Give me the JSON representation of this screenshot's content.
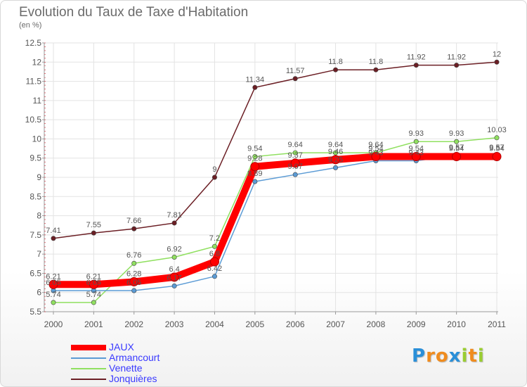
{
  "chart_data": {
    "type": "line",
    "title": "Evolution du Taux de Taxe d'Habitation",
    "subtitle": "(en %)",
    "categories": [
      "2000",
      "2001",
      "2002",
      "2003",
      "2004",
      "2005",
      "2006",
      "2007",
      "2008",
      "2009",
      "2010",
      "2011"
    ],
    "ylim": [
      5.5,
      12.5
    ],
    "yticks": [
      "5.5",
      "6",
      "6.5",
      "7",
      "7.5",
      "8",
      "8.5",
      "9",
      "9.5",
      "10",
      "10.5",
      "11",
      "11.5",
      "12",
      "12.5"
    ],
    "grid": true,
    "legend_position": "bottom-left",
    "series": [
      {
        "name": "Jonquières",
        "color": "#6b1e24",
        "values": [
          7.41,
          7.55,
          7.66,
          7.81,
          9,
          11.34,
          11.57,
          11.8,
          11.8,
          11.92,
          11.92,
          12
        ],
        "labels": [
          "7.41",
          "7.55",
          "7.66",
          "7.81",
          "9",
          "11.34",
          "11.57",
          "11.8",
          "11.8",
          "11.92",
          "11.92",
          "12"
        ]
      },
      {
        "name": "Venette",
        "color": "#90e060",
        "values": [
          5.74,
          5.74,
          6.76,
          6.92,
          7.2,
          9.54,
          9.64,
          9.64,
          9.64,
          9.93,
          9.93,
          10.03
        ],
        "labels": [
          "5.74",
          "5.74",
          "6.76",
          "6.92",
          "7.2",
          "9.54",
          "9.64",
          "9.64",
          "9.64",
          "9.93",
          "9.93",
          "10.03"
        ]
      },
      {
        "name": "Armancourt",
        "color": "#5b9bd5",
        "values": [
          6.05,
          6.05,
          6.05,
          6.17,
          6.42,
          8.89,
          9.07,
          9.25,
          9.43,
          9.43,
          9.57,
          9.57
        ],
        "labels": [
          "6.05",
          "6.05",
          "6.05",
          "6.17",
          "6.42",
          "8.89",
          "9.07",
          "9.25",
          "9.43",
          "9.43",
          "9.57",
          "9.57"
        ]
      },
      {
        "name": "JAUX",
        "color": "#ff0000",
        "values": [
          6.21,
          6.21,
          6.28,
          6.4,
          6.8,
          9.28,
          9.37,
          9.46,
          9.54,
          9.54,
          9.54,
          9.54
        ],
        "labels": [
          "6.21",
          "6.21",
          "6.28",
          "6.4",
          "6.8",
          "9.28",
          "9.37",
          "9.46",
          "9.54",
          "9.54",
          "9.54",
          "9.54"
        ]
      }
    ]
  },
  "legend": [
    {
      "name": "JAUX",
      "color": "#ff0000",
      "thick": true
    },
    {
      "name": "Armancourt",
      "color": "#5b9bd5",
      "thick": false
    },
    {
      "name": "Venette",
      "color": "#90e060",
      "thick": false
    },
    {
      "name": "Jonquières",
      "color": "#6b1e24",
      "thick": false
    }
  ],
  "logo": {
    "text": "Proxiti",
    "letters": [
      "P",
      "r",
      "o",
      "x",
      "i",
      "t",
      "i"
    ],
    "colors": [
      "#2a8fd8",
      "#f08c1e",
      "#f08c1e",
      "#2a8fd8",
      "#9acd32",
      "#f08c1e",
      "#9acd32"
    ]
  }
}
